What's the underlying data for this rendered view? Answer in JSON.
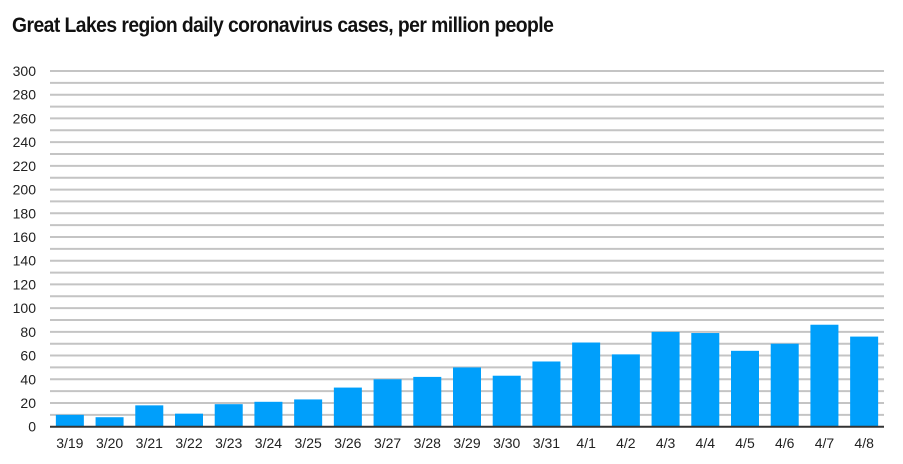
{
  "chart_data": {
    "type": "bar",
    "title": "Great Lakes region daily coronavirus cases, per million people",
    "xlabel": "",
    "ylabel": "",
    "ylim": [
      0,
      300
    ],
    "yticks": [
      0,
      20,
      40,
      60,
      80,
      100,
      120,
      140,
      160,
      180,
      200,
      220,
      240,
      260,
      280,
      300
    ],
    "grid": true,
    "categories": [
      "3/19",
      "3/20",
      "3/21",
      "3/22",
      "3/23",
      "3/24",
      "3/25",
      "3/26",
      "3/27",
      "3/28",
      "3/29",
      "3/30",
      "3/31",
      "4/1",
      "4/2",
      "4/3",
      "4/4",
      "4/5",
      "4/6",
      "4/7",
      "4/8"
    ],
    "values": [
      10,
      8,
      18,
      11,
      19,
      21,
      23,
      33,
      40,
      42,
      50,
      43,
      55,
      71,
      61,
      80,
      79,
      64,
      70,
      86,
      76
    ],
    "bar_color": "#009ffb"
  }
}
